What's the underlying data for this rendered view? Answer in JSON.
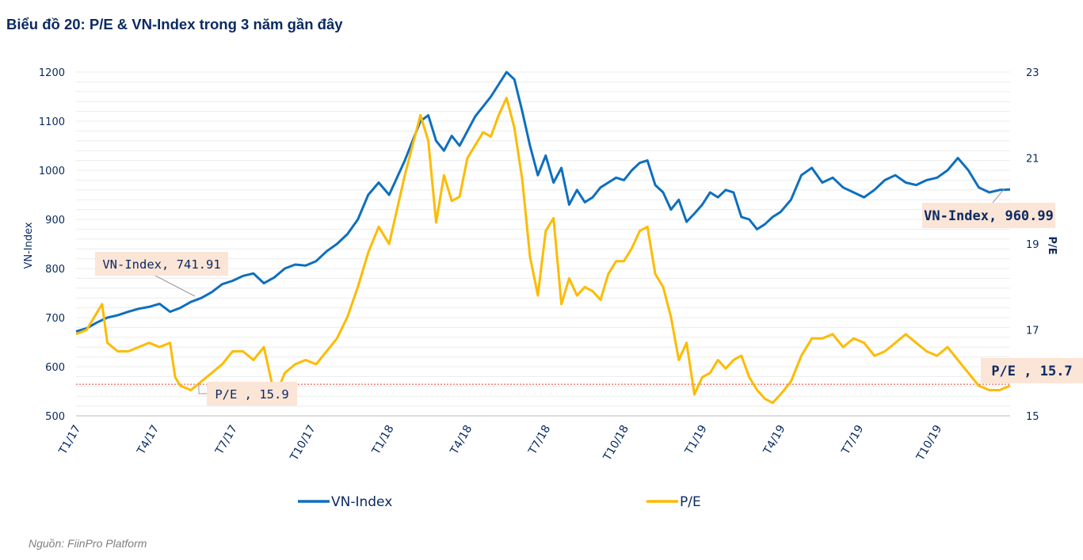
{
  "title": "Biểu đồ 20: P/E & VN-Index trong 3 năm gần đây",
  "source": "Nguồn: FiinPro Platform",
  "chart_data": {
    "type": "line",
    "title": "Biểu đồ 20: P/E & VN-Index trong 3 năm gần đây",
    "xlabel": "",
    "ylabel": "VN-Index",
    "y2label": "P/E",
    "ylim": [
      500,
      1200
    ],
    "y2lim": [
      15,
      23
    ],
    "yticks": [
      "500",
      "600",
      "700",
      "800",
      "900",
      "1000",
      "1100",
      "1200"
    ],
    "y2ticks": [
      "15",
      "17",
      "19",
      "21",
      "23"
    ],
    "xticks": [
      "T1/17",
      "T4/17",
      "T7/17",
      "T10/17",
      "T1/18",
      "T4/18",
      "T7/18",
      "T10/18",
      "T1/19",
      "T4/19",
      "T7/19",
      "T10/19"
    ],
    "x_unit": "months since Jan 2017",
    "grid": true,
    "legend_position": "bottom",
    "reference_line": {
      "axis": "y2",
      "value": 15.9,
      "style": "dotted",
      "color": "#e8423b"
    },
    "series": [
      {
        "name": "VN-Index",
        "axis": "y",
        "color": "#0e6fbe",
        "x": [
          0,
          0.4,
          0.8,
          1.2,
          1.6,
          2.0,
          2.4,
          2.8,
          3.2,
          3.6,
          4.0,
          4.4,
          4.8,
          5.2,
          5.6,
          6.0,
          6.4,
          6.8,
          7.2,
          7.6,
          8.0,
          8.4,
          8.8,
          9.2,
          9.6,
          10.0,
          10.4,
          10.8,
          11.2,
          11.6,
          12.0,
          12.3,
          12.6,
          12.9,
          13.2,
          13.5,
          13.8,
          14.1,
          14.4,
          14.7,
          15.0,
          15.3,
          15.6,
          15.9,
          16.2,
          16.5,
          16.8,
          17.1,
          17.4,
          17.7,
          18.0,
          18.3,
          18.6,
          18.9,
          19.2,
          19.5,
          19.8,
          20.1,
          20.4,
          20.7,
          21.0,
          21.3,
          21.6,
          21.9,
          22.2,
          22.5,
          22.8,
          23.1,
          23.4,
          23.7,
          24.0,
          24.3,
          24.6,
          24.9,
          25.2,
          25.5,
          25.8,
          26.1,
          26.4,
          26.7,
          27.0,
          27.4,
          27.8,
          28.2,
          28.6,
          29.0,
          29.4,
          29.8,
          30.2,
          30.6,
          31.0,
          31.4,
          31.8,
          32.2,
          32.6,
          33.0,
          33.4,
          33.8,
          34.2,
          34.6,
          35.0,
          35.4,
          35.8
        ],
        "values": [
          672,
          678,
          690,
          700,
          705,
          712,
          718,
          722,
          728,
          712,
          720,
          732,
          740,
          752,
          768,
          775,
          785,
          790,
          770,
          782,
          800,
          808,
          806,
          815,
          835,
          850,
          870,
          900,
          950,
          975,
          950,
          985,
          1020,
          1060,
          1100,
          1112,
          1060,
          1040,
          1070,
          1050,
          1080,
          1110,
          1130,
          1150,
          1175,
          1200,
          1185,
          1120,
          1050,
          990,
          1030,
          975,
          1005,
          930,
          960,
          935,
          945,
          965,
          975,
          985,
          980,
          1000,
          1015,
          1020,
          970,
          955,
          920,
          940,
          895,
          912,
          930,
          955,
          945,
          960,
          955,
          905,
          900,
          880,
          890,
          905,
          915,
          940,
          990,
          1005,
          975,
          985,
          965,
          955,
          945,
          960,
          980,
          990,
          975,
          970,
          980,
          985,
          1000,
          1025,
          1000,
          965,
          955,
          960,
          961
        ]
      },
      {
        "name": "P/E",
        "axis": "y2",
        "color": "#fdbb00",
        "x": [
          0,
          0.4,
          0.8,
          1.0,
          1.2,
          1.6,
          2.0,
          2.4,
          2.8,
          3.2,
          3.6,
          3.8,
          4.0,
          4.4,
          4.8,
          5.2,
          5.6,
          6.0,
          6.4,
          6.8,
          7.2,
          7.6,
          7.8,
          8.0,
          8.4,
          8.8,
          9.2,
          9.6,
          10.0,
          10.4,
          10.8,
          11.2,
          11.6,
          12.0,
          12.3,
          12.6,
          12.9,
          13.2,
          13.5,
          13.8,
          14.1,
          14.4,
          14.7,
          15.0,
          15.3,
          15.6,
          15.9,
          16.2,
          16.5,
          16.8,
          17.1,
          17.4,
          17.7,
          18.0,
          18.3,
          18.6,
          18.9,
          19.2,
          19.5,
          19.8,
          20.1,
          20.4,
          20.7,
          21.0,
          21.3,
          21.6,
          21.9,
          22.2,
          22.5,
          22.8,
          23.1,
          23.4,
          23.7,
          24.0,
          24.3,
          24.6,
          24.9,
          25.2,
          25.5,
          25.8,
          26.1,
          26.4,
          26.7,
          27.0,
          27.4,
          27.8,
          28.2,
          28.6,
          29.0,
          29.4,
          29.8,
          30.2,
          30.6,
          31.0,
          31.4,
          31.8,
          32.2,
          32.6,
          33.0,
          33.4,
          33.8,
          34.2,
          34.6,
          35.0,
          35.4,
          35.8
        ],
        "values": [
          16.9,
          17.0,
          17.4,
          17.6,
          16.7,
          16.5,
          16.5,
          16.6,
          16.7,
          16.6,
          16.7,
          15.9,
          15.7,
          15.6,
          15.8,
          16.0,
          16.2,
          16.5,
          16.5,
          16.3,
          16.6,
          15.5,
          15.7,
          16.0,
          16.2,
          16.3,
          16.2,
          16.5,
          16.8,
          17.3,
          18.0,
          18.8,
          19.4,
          19.0,
          19.8,
          20.6,
          21.3,
          22.0,
          21.4,
          19.5,
          20.6,
          20.0,
          20.1,
          21.0,
          21.3,
          21.6,
          21.5,
          22.0,
          22.4,
          21.7,
          20.5,
          18.7,
          17.8,
          19.3,
          19.6,
          17.6,
          18.2,
          17.8,
          18.0,
          17.9,
          17.7,
          18.3,
          18.6,
          18.6,
          18.9,
          19.3,
          19.4,
          18.3,
          18.0,
          17.3,
          16.3,
          16.7,
          15.5,
          15.9,
          16.0,
          16.3,
          16.1,
          16.3,
          16.4,
          15.9,
          15.6,
          15.4,
          15.3,
          15.5,
          15.8,
          16.4,
          16.8,
          16.8,
          16.9,
          16.6,
          16.8,
          16.7,
          16.4,
          16.5,
          16.7,
          16.9,
          16.7,
          16.5,
          16.4,
          16.6,
          16.3,
          16.0,
          15.7,
          15.6,
          15.6,
          15.7
        ]
      }
    ],
    "annotations": [
      {
        "series": "VN-Index",
        "label": "VN-Index, 741.91",
        "x": 5.0,
        "value": 741.91
      },
      {
        "series": "P/E",
        "label": "P/E ,  15.9",
        "x": 5.3,
        "value": 15.9
      },
      {
        "series": "VN-Index",
        "label": "VN-Index, 960.99",
        "x": 35.8,
        "value": 960.99
      },
      {
        "series": "P/E",
        "label": "P/E ,  15.7",
        "x": 35.8,
        "value": 15.7
      }
    ]
  },
  "legend": [
    {
      "label": "VN-Index",
      "color": "#0e6fbe"
    },
    {
      "label": "P/E",
      "color": "#fdbb00"
    }
  ]
}
